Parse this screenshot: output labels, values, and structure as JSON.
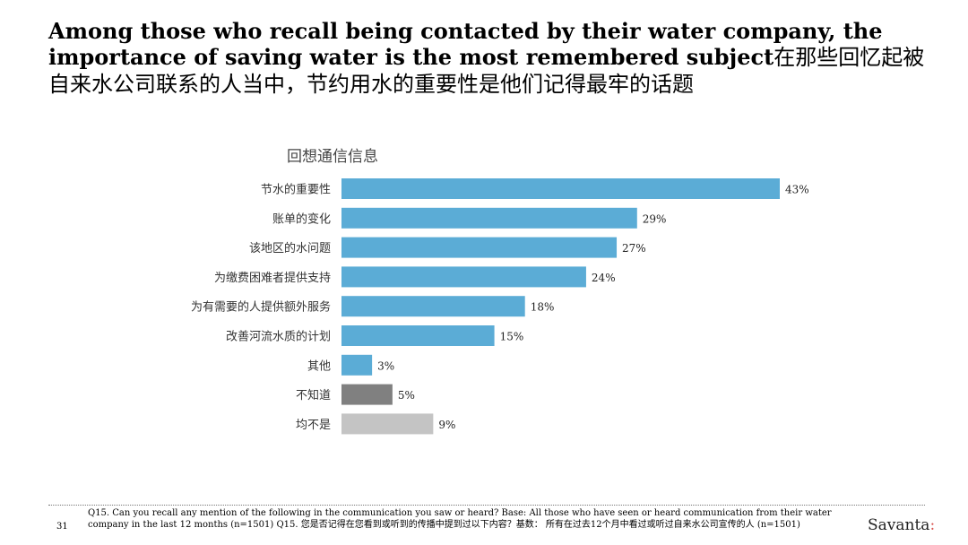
{
  "title": {
    "en": "Among those who recall being contacted by their water company, the importance of saving water is the most remembered subject",
    "cn": "在那些回忆起被自来水公司联系的人当中，节约用水的重要性是他们记得最牢的话题"
  },
  "chart_data": {
    "type": "bar",
    "orientation": "horizontal",
    "title": "回想通信信息",
    "categories": [
      "节水的重要性",
      "账单的变化",
      "该地区的水问题",
      "为缴费困难者提供支持",
      "为有需要的人提供额外服务",
      "改善河流水质的计划",
      "其他",
      "不知道",
      "均不是"
    ],
    "values": [
      43,
      29,
      27,
      24,
      18,
      15,
      3,
      5,
      9
    ],
    "value_labels": [
      "43%",
      "29%",
      "27%",
      "24%",
      "18%",
      "15%",
      "3%",
      "5%",
      "9%"
    ],
    "colors": [
      "#5bacd6",
      "#5bacd6",
      "#5bacd6",
      "#5bacd6",
      "#5bacd6",
      "#5bacd6",
      "#5bacd6",
      "#808080",
      "#c4c4c4"
    ],
    "xlim": [
      0,
      43
    ],
    "grid": false,
    "legend": false
  },
  "footer": {
    "page_number": "31",
    "note": "Q15. Can you recall any mention of the following in the communication you saw or heard? Base: All those who have seen or heard communication from their water company in the last 12 months  (n=1501) Q15. 您是否记得在您看到或听到的传播中提到过以下内容？基数： 所有在过去12个月中看过或听过自来水公司宣传的人 (n=1501)",
    "brand": "Savanta",
    "brand_mark": ":"
  }
}
